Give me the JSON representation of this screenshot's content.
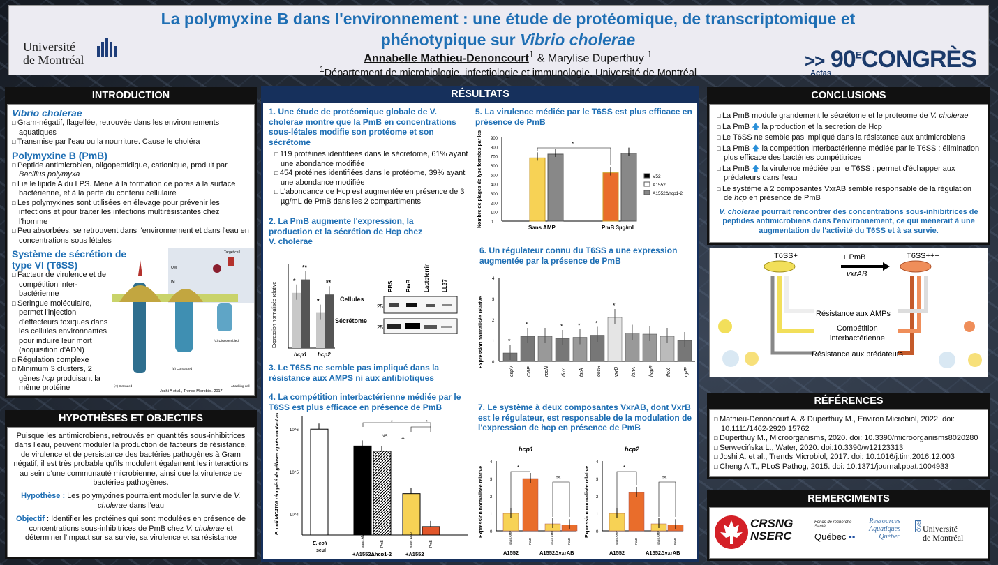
{
  "header": {
    "title_line1": "La polymyxine B dans l'environnement : une étude de protéomique, de transcriptomique et",
    "title_line2_a": "phénotypique sur ",
    "title_line2_b": "Vibrio cholerae",
    "author1": "Annabelle Mathieu-Denoncourt",
    "sup1": "1",
    "amp": " & Marylise Duperthuy ",
    "sup2": "1",
    "affil_sup": "1",
    "affil": "Département de microbiologie, infectiologie et immunologie, Université de Montréal",
    "um1": "Université",
    "um2": "de Montréal",
    "acfas_num": "90",
    "acfas_e": "E",
    "acfas_word": "CONGRÈS",
    "acfas_small": "Acfas"
  },
  "intro": {
    "head": "INTRODUCTION",
    "s1": "Vibrio cholerae",
    "s1b": [
      "Gram-négatif, flagellée, retrouvée dans les environnements aquatiques",
      "Transmise par l'eau ou la nourriture. Cause le choléra"
    ],
    "s2": "Polymyxine B (PmB)",
    "s2b0a": "Peptide antimicrobien, oligopeptidique, cationique, produit par ",
    "s2b0b": "Bacillus polymyxa",
    "s2b": [
      "Lie le lipide A du LPS. Mène à la formation de pores à la surface bactérienne, et à la perte du contenu cellulaire",
      "Les polymyxines sont utilisées en élevage pour prévenir les infections et pour traiter les infections multirésistantes chez l'homme",
      "Peu absorbées, se retrouvent dans l'environnement et dans l'eau en concentrations sous létales"
    ],
    "s3": "Système de sécrétion de type VI (T6SS)",
    "s3b": [
      "Facteur de virulence et de compétition inter-bactérienne",
      "Seringue moléculaire, permet l'injection d'effecteurs toxiques dans les cellules environnantes pour induire leur mort (acquisition d'ADN)",
      "Régulation complexe"
    ],
    "s3b4a": "Minimum 3 clusters, 2 gènes ",
    "s3b4b": "hcp",
    "s3b4c": " produisant la même protéine",
    "fig_labels": {
      "target": "Target cell",
      "om": "OM",
      "im": "IM",
      "a": "(A) Extended",
      "b": "(B) Contracted",
      "c": "(C) Disassembled",
      "att": "Attacking cell",
      "cite": "Joshi A et al., Trends Microbiol. 2017."
    }
  },
  "hypo": {
    "head": "HYPOTHÈSES ET OBJECTIFS",
    "p1": "Puisque les antimicrobiens, retrouvés en quantités sous-inhibitrices dans l'eau, peuvent moduler la production de facteurs de résistance, de virulence et de persistance des bactéries pathogènes à Gram négatif, il est très probable qu'ils modulent également les interactions au sein d'une communauté microbienne, ainsi que la virulence de bactéries pathogènes.",
    "h_label": "Hypothèse :",
    "h_text": " Les polymyxines pourraient moduler la survie de ",
    "h_vc": "V. cholerae",
    "h_end": " dans l'eau",
    "o_label": "Objectif",
    "o_text": " : Identifier les protéines qui sont modulées en présence de concentrations sous-inhibitrices de PmB chez ",
    "o_vc": "V. cholerae",
    "o_end": " et déterminer l'impact sur sa survie, sa virulence et sa résistance"
  },
  "results": {
    "head": "RÉSULTATS",
    "r1_title": "1. Une étude de protéomique globale de V. cholerae montre que la PmB en concentrations sous-létales modifie son protéome et son sécrétome",
    "r1b": [
      "119 protéines identifiées dans le sécrétome, 61% ayant une abondance modifiée",
      "454 protéines identifiées dans le protéome, 39% ayant une abondance modifiée",
      "L'abondance de Hcp est augmentée en présence de 3 µg/mL de PmB dans les 2 compartiments"
    ],
    "r2_title": "2. La PmB augmente l'expression, la production et la sécrétion de Hcp chez V. cholerae",
    "r3_title": "3. Le T6SS ne semble pas impliqué dans la résistance aux AMPS ni aux antibiotiques",
    "r4_title": "4. La compétition interbactérienne médiée par le T6SS est plus efficace en présence de PmB",
    "r5_title": "5. La virulence médiée par le T6SS est plus efficace en présence de PmB",
    "r6_title": "6. Un régulateur connu du T6SS a une expression augmentée par la présence de PmB",
    "r7_title": "7. Le système à deux composantes VxrAB, dont VxrB est le régulateur, est responsable de la modulation de l'expression de hcp en présence de PmB",
    "wb": {
      "lanes": [
        "PBS",
        "PmB",
        "Lactoferrine",
        "LL37"
      ],
      "cells": "Cellules",
      "sec": "Sécrétome",
      "m1": "25",
      "m2": "25"
    }
  },
  "chart_data": [
    {
      "id": "fig2",
      "type": "bar",
      "ylabel": "Expression normalisée relative",
      "categories": [
        "hcp1",
        "hcp2"
      ],
      "series": [
        {
          "values": [
            3.3,
            2.1
          ]
        },
        {
          "values": [
            4.1,
            3.2
          ]
        }
      ],
      "ylim": [
        0,
        5
      ],
      "annotations": [
        "*",
        "**",
        "*",
        "**"
      ]
    },
    {
      "id": "fig4",
      "type": "bar",
      "ylabel": "E. coli MC4100 récupéré de géloses après contact avec V. cholerae (CFU/ml)",
      "groups": [
        "E. coli seul",
        "+A1552Δhcp1-2",
        "+A1552"
      ],
      "categories": [
        "",
        "sans AMP",
        "PmB",
        "sans AMP",
        "PmB"
      ],
      "values": [
        1000000,
        400000,
        300000,
        30000,
        5000
      ],
      "ticks": [
        "10^6",
        "10^5",
        "10^4"
      ],
      "annotations": [
        "NS",
        "**",
        "*",
        "*"
      ],
      "log": true
    },
    {
      "id": "fig5",
      "type": "bar",
      "ylabel": "Nombre de plages de lyse formées par les amibes sur le tapis bactérien",
      "categories": [
        "Sans AMP",
        "PmB 3µg/ml"
      ],
      "series": [
        {
          "name": "V52",
          "values": [
            0,
            0
          ]
        },
        {
          "name": "A1552",
          "values": [
            680,
            520
          ]
        },
        {
          "name": "A1552Δhcp1-2",
          "values": [
            720,
            730
          ]
        }
      ],
      "ylim": [
        0,
        900
      ],
      "yticks": [
        0,
        100,
        200,
        300,
        400,
        500,
        600,
        700,
        800,
        900
      ],
      "annotations": [
        "*"
      ]
    },
    {
      "id": "fig6",
      "type": "bar",
      "ylabel": "Expression normalisée relative",
      "categories": [
        "cspV",
        "CRP",
        "rpoN",
        "tfoY",
        "tsrA",
        "oscR",
        "vxrB",
        "lonA",
        "hapR",
        "tfoX",
        "cytR"
      ],
      "values": [
        0.4,
        1.2,
        1.2,
        1.1,
        1.15,
        1.25,
        2.1,
        1.35,
        1.3,
        1.2,
        1.0
      ],
      "ylim": [
        0,
        4
      ],
      "yticks": [
        0,
        1,
        2,
        3,
        4
      ],
      "annotations": [
        "*",
        "*",
        "*",
        "*",
        "*",
        "*"
      ]
    },
    {
      "id": "fig7a",
      "type": "bar",
      "title": "hcp1",
      "ylabel": "Expression normalisée relative",
      "groups": [
        "A1552",
        "A1552ΔvxrAB"
      ],
      "categories": [
        "sans AMP",
        "PmB",
        "sans AMP",
        "PmB"
      ],
      "values": [
        1,
        3,
        0.4,
        0.35
      ],
      "ylim": [
        0,
        4
      ],
      "yticks": [
        0,
        1,
        2,
        3,
        4
      ],
      "annotations": [
        "*",
        "ns"
      ]
    },
    {
      "id": "fig7b",
      "type": "bar",
      "title": "hcp2",
      "ylabel": "Expression normalisée relative",
      "groups": [
        "A1552",
        "A1552ΔvxrAB"
      ],
      "categories": [
        "sans AMP",
        "PmB",
        "sans AMP",
        "PmB"
      ],
      "values": [
        1,
        2.2,
        0.4,
        0.35
      ],
      "ylim": [
        0,
        4
      ],
      "yticks": [
        0,
        1,
        2,
        3,
        4
      ],
      "annotations": [
        "*",
        "ns"
      ]
    }
  ],
  "conclusions": {
    "head": "CONCLUSIONS",
    "c1a": "La PmB module grandement le sécrétome et le proteome de ",
    "c1b": "V. cholerae",
    "c2": "La PmB  la production et la secretion de Hcp",
    "c3": "Le T6SS ne semble pas impliqué dans la résistance aux antimicrobiens",
    "c4": "La PmB  la compétition interbactérienne médiée par le T6SS : élimination plus efficace des bactéries compétitrices",
    "c5": "La PmB  la virulence médiée par le T6SS : permet d'échapper aux prédateurs dans l'eau",
    "c6a": "Le système à 2 composantes VxrAB semble responsable de la régulation de ",
    "c6b": "hcp",
    "c6c": " en présence de PmB",
    "summary_vc": "V. cholerae",
    "summary": " pourrait rencontrer des concentrations sous-inhibitrices de peptides antimicrobiens dans l'environnement, ce qui mènerait à une augmentation de l'activité du T6SS et à sa survie.",
    "diag": {
      "left": "T6SS+",
      "right": "T6SS+++",
      "pmb": "+ PmB",
      "vxrab": "vxrAB",
      "r1": "Résistance aux AMPs",
      "r2a": "Compétition",
      "r2b": "interbactérienne",
      "r3": "Résistance aux prédateurs"
    }
  },
  "references": {
    "head": "RÉFÉRENCES",
    "items": [
      "Mathieu-Denoncourt A. & Duperthuy M., Environ Microbiol, 2022. doi: 10.1111/1462-2920.15762",
      "Duperthuy M., Microorganisms, 2020. doi: 10.3390/microorganisms8020280",
      "Serwecińska L., Water, 2020. doi:10.3390/w12123313",
      "Joshi A. et al., Trends Microbiol, 2017. doi: 10.1016/j.tim.2016.12.003",
      "Cheng A.T., PLoS Pathog, 2015. doi: 10.1371/journal.ppat.1004933"
    ]
  },
  "thanks": {
    "head": "REMERCIMENTS",
    "crsng": "CRSNG",
    "nserc": "NSERC",
    "frq1": "Fonds de recherche",
    "frq2": "Santé",
    "quebec": "Québec",
    "rq1": "Ressources",
    "rq2": "Aquatiques",
    "rq3": "Québec",
    "rq4": "RAQ",
    "um1": "Université",
    "um2": "de Montréal"
  }
}
